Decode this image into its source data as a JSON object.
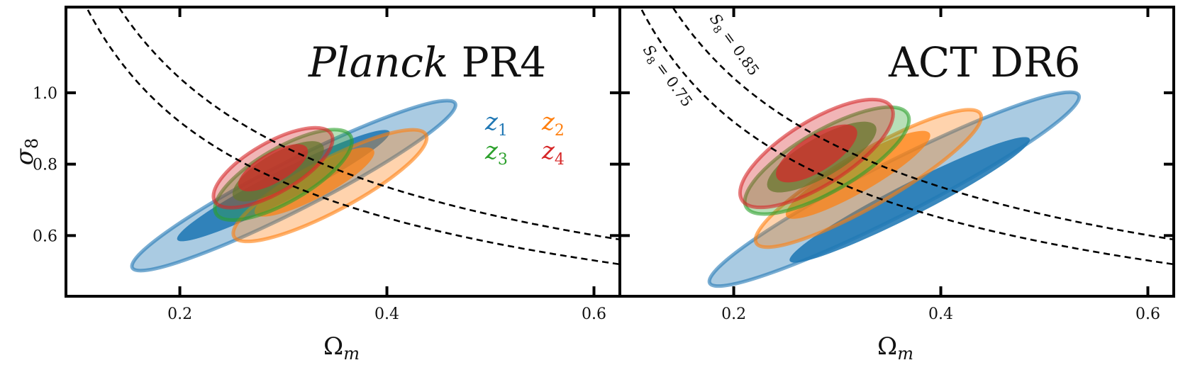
{
  "chart_data": [
    {
      "type": "contour",
      "panel": "left",
      "title": "Planck PR4",
      "title_italic_part": "Planck",
      "title_plain_part": " PR4",
      "xlabel": "Ω",
      "xlabel_sub": "m",
      "ylabel": "σ",
      "ylabel_sub": "8",
      "xlim": [
        0.09,
        0.625
      ],
      "ylim": [
        0.43,
        1.24
      ],
      "xticks": [
        0.2,
        0.4,
        0.6
      ],
      "xtick_labels": [
        "0.2",
        "0.4",
        "0.6"
      ],
      "yticks": [
        0.6,
        0.8,
        1.0
      ],
      "ytick_labels": [
        "0.6",
        "0.8",
        "1.0"
      ],
      "grid": false,
      "legend": {
        "placement": "upper-right",
        "entries": [
          {
            "name": "z",
            "sub": "1",
            "color": "#1f77b4"
          },
          {
            "name": "z",
            "sub": "2",
            "color": "#ff7f0e"
          },
          {
            "name": "z",
            "sub": "3",
            "color": "#2ca02c"
          },
          {
            "name": "z",
            "sub": "4",
            "color": "#d62728"
          }
        ]
      },
      "s8_curves": [
        {
          "S8": 0.75
        },
        {
          "S8": 0.85
        }
      ],
      "contours": [
        {
          "series": "z1",
          "color": "#1f77b4",
          "center": [
            0.31,
            0.74
          ],
          "semi_axes": [
            0.175,
            0.068
          ],
          "angle_deg": -27,
          "level": "95%"
        },
        {
          "series": "z1",
          "color": "#1f77b4",
          "center": [
            0.3,
            0.74
          ],
          "semi_axes": [
            0.115,
            0.042
          ],
          "angle_deg": -27,
          "level": "68%"
        },
        {
          "series": "z2",
          "color": "#ff7f0e",
          "center": [
            0.345,
            0.74
          ],
          "semi_axes": [
            0.105,
            0.072
          ],
          "angle_deg": -28,
          "level": "95%"
        },
        {
          "series": "z2",
          "color": "#ff7f0e",
          "center": [
            0.33,
            0.75
          ],
          "semi_axes": [
            0.065,
            0.045
          ],
          "angle_deg": -28,
          "level": "68%"
        },
        {
          "series": "z3",
          "color": "#2ca02c",
          "center": [
            0.3,
            0.77
          ],
          "semi_axes": [
            0.075,
            0.075
          ],
          "angle_deg": -30,
          "level": "95%"
        },
        {
          "series": "z3",
          "color": "#2ca02c",
          "center": [
            0.295,
            0.78
          ],
          "semi_axes": [
            0.05,
            0.05
          ],
          "angle_deg": -30,
          "level": "68%"
        },
        {
          "series": "z4",
          "color": "#d62728",
          "center": [
            0.29,
            0.79
          ],
          "semi_axes": [
            0.065,
            0.07
          ],
          "angle_deg": -30,
          "level": "95%"
        },
        {
          "series": "z4",
          "color": "#d62728",
          "center": [
            0.29,
            0.79
          ],
          "semi_axes": [
            0.038,
            0.042
          ],
          "angle_deg": -30,
          "level": "68%"
        }
      ]
    },
    {
      "type": "contour",
      "panel": "right",
      "title": "ACT DR6",
      "xlabel": "Ω",
      "xlabel_sub": "m",
      "xlim": [
        0.09,
        0.625
      ],
      "ylim": [
        0.43,
        1.24
      ],
      "xticks": [
        0.2,
        0.4,
        0.6
      ],
      "xtick_labels": [
        "0.2",
        "0.4",
        "0.6"
      ],
      "grid": false,
      "s8_curves": [
        {
          "S8": 0.75,
          "label": "S",
          "label_sub": "8",
          "label_rest": " = 0.75"
        },
        {
          "S8": 0.85,
          "label": "S",
          "label_sub": "8",
          "label_rest": " = 0.85"
        }
      ],
      "contours": [
        {
          "series": "z1",
          "color": "#1f77b4",
          "center": [
            0.355,
            0.73
          ],
          "semi_axes": [
            0.2,
            0.075
          ],
          "angle_deg": -27,
          "level": "95%"
        },
        {
          "series": "z1",
          "color": "#1f77b4",
          "center": [
            0.37,
            0.7
          ],
          "semi_axes": [
            0.13,
            0.045
          ],
          "angle_deg": -27,
          "level": "68%"
        },
        {
          "series": "z2",
          "color": "#ff7f0e",
          "center": [
            0.33,
            0.76
          ],
          "semi_axes": [
            0.125,
            0.075
          ],
          "angle_deg": -30,
          "level": "95%"
        },
        {
          "series": "z2",
          "color": "#ff7f0e",
          "center": [
            0.32,
            0.77
          ],
          "semi_axes": [
            0.08,
            0.048
          ],
          "angle_deg": -30,
          "level": "68%"
        },
        {
          "series": "z3",
          "color": "#2ca02c",
          "center": [
            0.29,
            0.81
          ],
          "semi_axes": [
            0.09,
            0.085
          ],
          "angle_deg": -30,
          "level": "95%"
        },
        {
          "series": "z3",
          "color": "#2ca02c",
          "center": [
            0.285,
            0.82
          ],
          "semi_axes": [
            0.06,
            0.055
          ],
          "angle_deg": -30,
          "level": "68%"
        },
        {
          "series": "z4",
          "color": "#d62728",
          "center": [
            0.28,
            0.83
          ],
          "semi_axes": [
            0.085,
            0.09
          ],
          "angle_deg": -32,
          "level": "95%"
        },
        {
          "series": "z4",
          "color": "#d62728",
          "center": [
            0.28,
            0.83
          ],
          "semi_axes": [
            0.045,
            0.05
          ],
          "angle_deg": -32,
          "level": "68%"
        }
      ]
    }
  ]
}
